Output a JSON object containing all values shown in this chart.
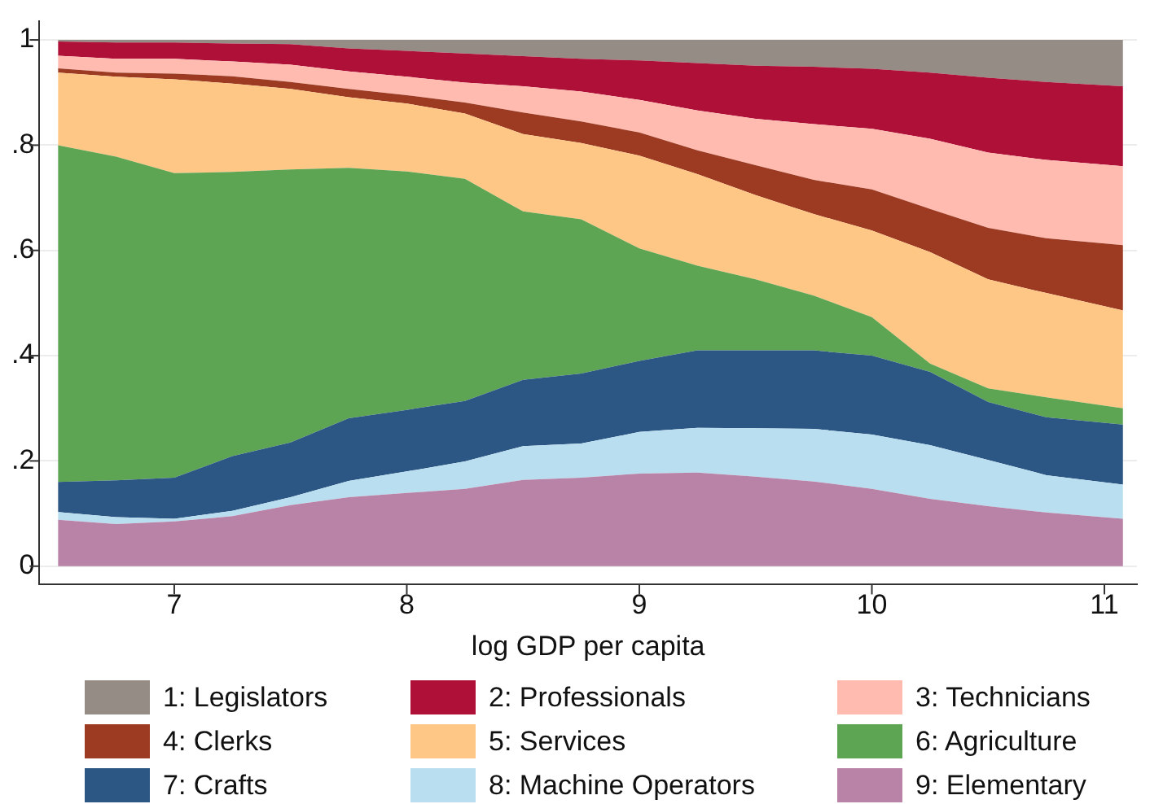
{
  "chart_data": {
    "type": "area",
    "stacked": true,
    "xlabel": "log GDP per capita",
    "x": [
      6.5,
      6.75,
      7,
      7.25,
      7.5,
      7.75,
      8,
      8.25,
      8.5,
      8.75,
      9,
      9.25,
      9.5,
      9.75,
      10,
      10.25,
      10.5,
      10.75,
      11.08
    ],
    "xlim": [
      6.42,
      11.14
    ],
    "xticks": [
      7,
      8,
      9,
      10,
      11
    ],
    "ylim": [
      -0.035,
      1.035
    ],
    "yticks": [
      {
        "value": 0,
        "label": "0"
      },
      {
        "value": 0.2,
        "label": ".2"
      },
      {
        "value": 0.4,
        "label": ".4"
      },
      {
        "value": 0.6,
        "label": ".6"
      },
      {
        "value": 0.8,
        "label": ".8"
      },
      {
        "value": 1,
        "label": "1"
      }
    ],
    "grid": "y",
    "legend": "bottom",
    "series": [
      {
        "name": "9: Elementary",
        "color": "#b983a8",
        "values": [
          0.088,
          0.08,
          0.085,
          0.095,
          0.116,
          0.131,
          0.139,
          0.147,
          0.164,
          0.168,
          0.176,
          0.178,
          0.17,
          0.161,
          0.147,
          0.128,
          0.114,
          0.102,
          0.09
        ]
      },
      {
        "name": "8: Machine Operators",
        "color": "#b9def0",
        "values": [
          0.015,
          0.013,
          0.005,
          0.01,
          0.015,
          0.031,
          0.041,
          0.052,
          0.064,
          0.065,
          0.079,
          0.085,
          0.092,
          0.1,
          0.103,
          0.102,
          0.088,
          0.071,
          0.065
        ]
      },
      {
        "name": "7: Crafts",
        "color": "#2c5784",
        "values": [
          0.057,
          0.07,
          0.078,
          0.104,
          0.104,
          0.119,
          0.117,
          0.115,
          0.126,
          0.133,
          0.135,
          0.147,
          0.148,
          0.149,
          0.15,
          0.139,
          0.11,
          0.11,
          0.114
        ]
      },
      {
        "name": "6: Agriculture",
        "color": "#5ea553",
        "values": [
          0.64,
          0.615,
          0.579,
          0.54,
          0.519,
          0.476,
          0.453,
          0.422,
          0.32,
          0.293,
          0.214,
          0.161,
          0.135,
          0.104,
          0.073,
          0.016,
          0.026,
          0.038,
          0.031
        ]
      },
      {
        "name": "5: Services",
        "color": "#fec785",
        "values": [
          0.138,
          0.152,
          0.178,
          0.168,
          0.153,
          0.134,
          0.129,
          0.124,
          0.147,
          0.145,
          0.176,
          0.174,
          0.16,
          0.155,
          0.165,
          0.212,
          0.207,
          0.198,
          0.186
        ]
      },
      {
        "name": "4: Clerks",
        "color": "#9c3a22",
        "values": [
          0.008,
          0.008,
          0.011,
          0.014,
          0.013,
          0.016,
          0.016,
          0.021,
          0.041,
          0.041,
          0.044,
          0.045,
          0.057,
          0.065,
          0.078,
          0.082,
          0.098,
          0.104,
          0.124
        ]
      },
      {
        "name": "3: Technicians",
        "color": "#ffbbb0",
        "values": [
          0.024,
          0.026,
          0.028,
          0.028,
          0.033,
          0.033,
          0.035,
          0.038,
          0.05,
          0.057,
          0.062,
          0.076,
          0.088,
          0.106,
          0.115,
          0.133,
          0.143,
          0.149,
          0.15
        ]
      },
      {
        "name": "2: Professionals",
        "color": "#ae1038",
        "values": [
          0.027,
          0.031,
          0.031,
          0.034,
          0.039,
          0.044,
          0.049,
          0.055,
          0.057,
          0.062,
          0.075,
          0.09,
          0.101,
          0.109,
          0.114,
          0.126,
          0.142,
          0.148,
          0.152
        ]
      },
      {
        "name": "1: Legislators",
        "color": "#968c86",
        "values": [
          0.003,
          0.005,
          0.005,
          0.007,
          0.008,
          0.016,
          0.021,
          0.026,
          0.031,
          0.036,
          0.039,
          0.044,
          0.049,
          0.051,
          0.055,
          0.062,
          0.072,
          0.08,
          0.088
        ]
      }
    ]
  }
}
